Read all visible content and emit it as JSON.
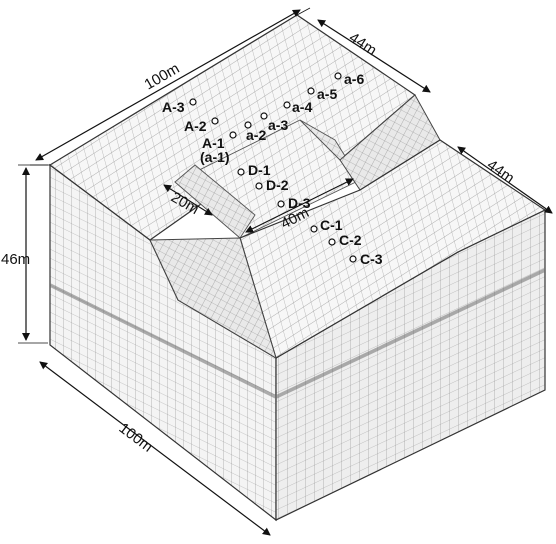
{
  "dimensions": {
    "top_length": "100m",
    "top_width": "44m",
    "right_width": "44m",
    "height": "46m",
    "bottom_length": "100m",
    "trench_width": "20m",
    "trench_length": "40m"
  },
  "points": [
    {
      "id": "A-3",
      "label": "A-3"
    },
    {
      "id": "A-2",
      "label": "A-2"
    },
    {
      "id": "A-1",
      "label": "A-1"
    },
    {
      "id": "a-1",
      "label": "(a-1)"
    },
    {
      "id": "a-2",
      "label": "a-2"
    },
    {
      "id": "a-3",
      "label": "a-3"
    },
    {
      "id": "a-4",
      "label": "a-4"
    },
    {
      "id": "a-5",
      "label": "a-5"
    },
    {
      "id": "a-6",
      "label": "a-6"
    },
    {
      "id": "D-1",
      "label": "D-1"
    },
    {
      "id": "D-2",
      "label": "D-2"
    },
    {
      "id": "D-3",
      "label": "D-3"
    },
    {
      "id": "C-1",
      "label": "C-1"
    },
    {
      "id": "C-2",
      "label": "C-2"
    },
    {
      "id": "C-3",
      "label": "C-3"
    }
  ],
  "colors": {
    "face": "#f2f2f2",
    "face_dark": "#e2e2e2",
    "mesh": "#8a8a8a",
    "edge": "#333333",
    "band": "#6f6f6f"
  }
}
